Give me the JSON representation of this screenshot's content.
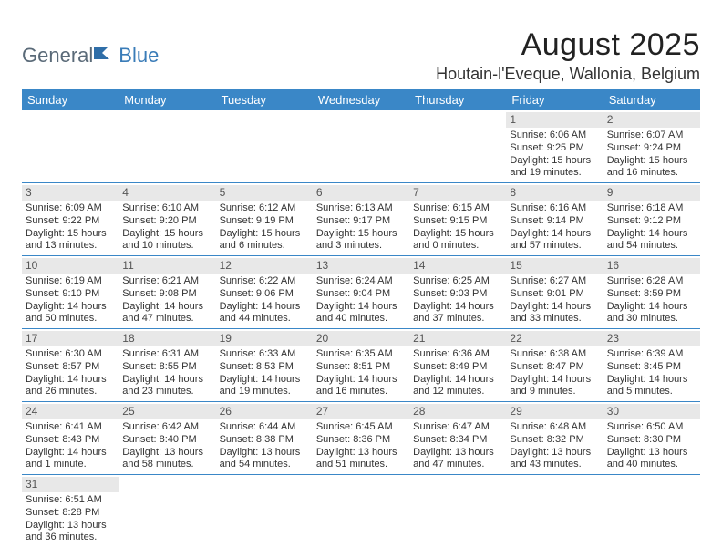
{
  "logo": {
    "part1": "General",
    "part2": "Blue"
  },
  "title": "August 2025",
  "location": "Houtain-l'Eveque, Wallonia, Belgium",
  "day_headers": [
    "Sunday",
    "Monday",
    "Tuesday",
    "Wednesday",
    "Thursday",
    "Friday",
    "Saturday"
  ],
  "colors": {
    "header_bg": "#3a87c7",
    "header_fg": "#ffffff",
    "daynum_bg": "#e8e8e8",
    "row_border": "#3a87c7",
    "logo_gray": "#5a6a78",
    "logo_blue": "#3a7cb8"
  },
  "weeks": [
    [
      null,
      null,
      null,
      null,
      null,
      {
        "n": "1",
        "sr": "Sunrise: 6:06 AM",
        "ss": "Sunset: 9:25 PM",
        "d1": "Daylight: 15 hours",
        "d2": "and 19 minutes."
      },
      {
        "n": "2",
        "sr": "Sunrise: 6:07 AM",
        "ss": "Sunset: 9:24 PM",
        "d1": "Daylight: 15 hours",
        "d2": "and 16 minutes."
      }
    ],
    [
      {
        "n": "3",
        "sr": "Sunrise: 6:09 AM",
        "ss": "Sunset: 9:22 PM",
        "d1": "Daylight: 15 hours",
        "d2": "and 13 minutes."
      },
      {
        "n": "4",
        "sr": "Sunrise: 6:10 AM",
        "ss": "Sunset: 9:20 PM",
        "d1": "Daylight: 15 hours",
        "d2": "and 10 minutes."
      },
      {
        "n": "5",
        "sr": "Sunrise: 6:12 AM",
        "ss": "Sunset: 9:19 PM",
        "d1": "Daylight: 15 hours",
        "d2": "and 6 minutes."
      },
      {
        "n": "6",
        "sr": "Sunrise: 6:13 AM",
        "ss": "Sunset: 9:17 PM",
        "d1": "Daylight: 15 hours",
        "d2": "and 3 minutes."
      },
      {
        "n": "7",
        "sr": "Sunrise: 6:15 AM",
        "ss": "Sunset: 9:15 PM",
        "d1": "Daylight: 15 hours",
        "d2": "and 0 minutes."
      },
      {
        "n": "8",
        "sr": "Sunrise: 6:16 AM",
        "ss": "Sunset: 9:14 PM",
        "d1": "Daylight: 14 hours",
        "d2": "and 57 minutes."
      },
      {
        "n": "9",
        "sr": "Sunrise: 6:18 AM",
        "ss": "Sunset: 9:12 PM",
        "d1": "Daylight: 14 hours",
        "d2": "and 54 minutes."
      }
    ],
    [
      {
        "n": "10",
        "sr": "Sunrise: 6:19 AM",
        "ss": "Sunset: 9:10 PM",
        "d1": "Daylight: 14 hours",
        "d2": "and 50 minutes."
      },
      {
        "n": "11",
        "sr": "Sunrise: 6:21 AM",
        "ss": "Sunset: 9:08 PM",
        "d1": "Daylight: 14 hours",
        "d2": "and 47 minutes."
      },
      {
        "n": "12",
        "sr": "Sunrise: 6:22 AM",
        "ss": "Sunset: 9:06 PM",
        "d1": "Daylight: 14 hours",
        "d2": "and 44 minutes."
      },
      {
        "n": "13",
        "sr": "Sunrise: 6:24 AM",
        "ss": "Sunset: 9:04 PM",
        "d1": "Daylight: 14 hours",
        "d2": "and 40 minutes."
      },
      {
        "n": "14",
        "sr": "Sunrise: 6:25 AM",
        "ss": "Sunset: 9:03 PM",
        "d1": "Daylight: 14 hours",
        "d2": "and 37 minutes."
      },
      {
        "n": "15",
        "sr": "Sunrise: 6:27 AM",
        "ss": "Sunset: 9:01 PM",
        "d1": "Daylight: 14 hours",
        "d2": "and 33 minutes."
      },
      {
        "n": "16",
        "sr": "Sunrise: 6:28 AM",
        "ss": "Sunset: 8:59 PM",
        "d1": "Daylight: 14 hours",
        "d2": "and 30 minutes."
      }
    ],
    [
      {
        "n": "17",
        "sr": "Sunrise: 6:30 AM",
        "ss": "Sunset: 8:57 PM",
        "d1": "Daylight: 14 hours",
        "d2": "and 26 minutes."
      },
      {
        "n": "18",
        "sr": "Sunrise: 6:31 AM",
        "ss": "Sunset: 8:55 PM",
        "d1": "Daylight: 14 hours",
        "d2": "and 23 minutes."
      },
      {
        "n": "19",
        "sr": "Sunrise: 6:33 AM",
        "ss": "Sunset: 8:53 PM",
        "d1": "Daylight: 14 hours",
        "d2": "and 19 minutes."
      },
      {
        "n": "20",
        "sr": "Sunrise: 6:35 AM",
        "ss": "Sunset: 8:51 PM",
        "d1": "Daylight: 14 hours",
        "d2": "and 16 minutes."
      },
      {
        "n": "21",
        "sr": "Sunrise: 6:36 AM",
        "ss": "Sunset: 8:49 PM",
        "d1": "Daylight: 14 hours",
        "d2": "and 12 minutes."
      },
      {
        "n": "22",
        "sr": "Sunrise: 6:38 AM",
        "ss": "Sunset: 8:47 PM",
        "d1": "Daylight: 14 hours",
        "d2": "and 9 minutes."
      },
      {
        "n": "23",
        "sr": "Sunrise: 6:39 AM",
        "ss": "Sunset: 8:45 PM",
        "d1": "Daylight: 14 hours",
        "d2": "and 5 minutes."
      }
    ],
    [
      {
        "n": "24",
        "sr": "Sunrise: 6:41 AM",
        "ss": "Sunset: 8:43 PM",
        "d1": "Daylight: 14 hours",
        "d2": "and 1 minute."
      },
      {
        "n": "25",
        "sr": "Sunrise: 6:42 AM",
        "ss": "Sunset: 8:40 PM",
        "d1": "Daylight: 13 hours",
        "d2": "and 58 minutes."
      },
      {
        "n": "26",
        "sr": "Sunrise: 6:44 AM",
        "ss": "Sunset: 8:38 PM",
        "d1": "Daylight: 13 hours",
        "d2": "and 54 minutes."
      },
      {
        "n": "27",
        "sr": "Sunrise: 6:45 AM",
        "ss": "Sunset: 8:36 PM",
        "d1": "Daylight: 13 hours",
        "d2": "and 51 minutes."
      },
      {
        "n": "28",
        "sr": "Sunrise: 6:47 AM",
        "ss": "Sunset: 8:34 PM",
        "d1": "Daylight: 13 hours",
        "d2": "and 47 minutes."
      },
      {
        "n": "29",
        "sr": "Sunrise: 6:48 AM",
        "ss": "Sunset: 8:32 PM",
        "d1": "Daylight: 13 hours",
        "d2": "and 43 minutes."
      },
      {
        "n": "30",
        "sr": "Sunrise: 6:50 AM",
        "ss": "Sunset: 8:30 PM",
        "d1": "Daylight: 13 hours",
        "d2": "and 40 minutes."
      }
    ],
    [
      {
        "n": "31",
        "sr": "Sunrise: 6:51 AM",
        "ss": "Sunset: 8:28 PM",
        "d1": "Daylight: 13 hours",
        "d2": "and 36 minutes."
      },
      null,
      null,
      null,
      null,
      null,
      null
    ]
  ]
}
